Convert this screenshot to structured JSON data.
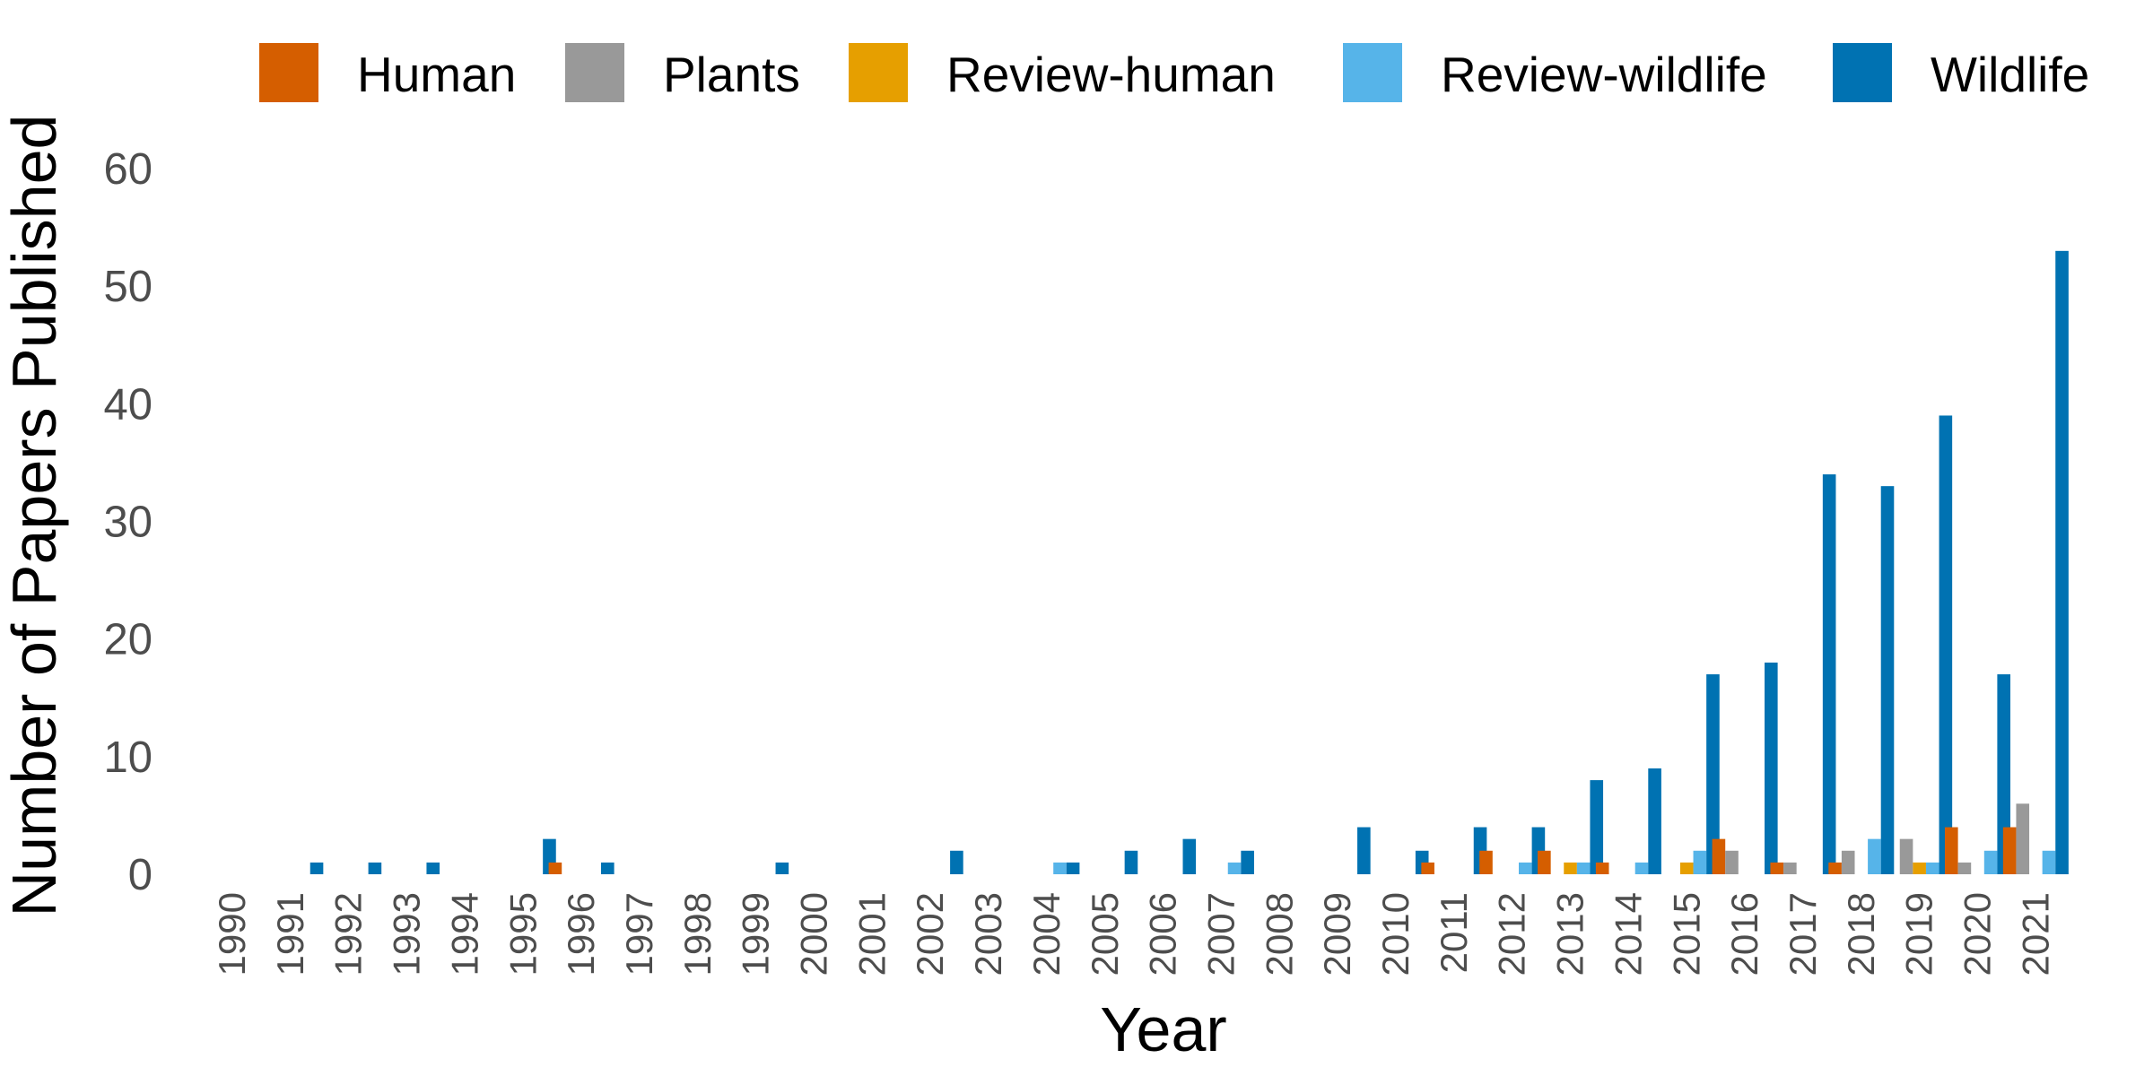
{
  "chart_data": {
    "type": "bar",
    "title": "",
    "xlabel": "Year",
    "ylabel": "Number of Papers Published",
    "ylim": [
      0,
      65
    ],
    "yticks": [
      0,
      10,
      20,
      30,
      40,
      50,
      60
    ],
    "grid": false,
    "legend_position": "top",
    "categories": [
      "1990",
      "1991",
      "1992",
      "1993",
      "1994",
      "1995",
      "1996",
      "1997",
      "1998",
      "1999",
      "2000",
      "2001",
      "2002",
      "2003",
      "2004",
      "2005",
      "2006",
      "2007",
      "2008",
      "2009",
      "2010",
      "2011",
      "2012",
      "2013",
      "2014",
      "2015",
      "2016",
      "2017",
      "2018",
      "2019",
      "2020",
      "2021"
    ],
    "series": [
      {
        "name": "Human",
        "color": "#D55E00",
        "values": [
          0,
          0,
          0,
          0,
          0,
          0,
          1,
          0,
          0,
          0,
          0,
          0,
          0,
          0,
          0,
          0,
          0,
          0,
          0,
          0,
          0,
          1,
          2,
          2,
          1,
          0,
          3,
          1,
          1,
          0,
          4,
          4
        ]
      },
      {
        "name": "Plants",
        "color": "#999999",
        "values": [
          0,
          0,
          0,
          0,
          0,
          0,
          0,
          0,
          0,
          0,
          0,
          0,
          0,
          0,
          0,
          0,
          0,
          0,
          0,
          0,
          0,
          0,
          0,
          0,
          0,
          0,
          2,
          1,
          2,
          3,
          1,
          6
        ]
      },
      {
        "name": "Review-human",
        "color": "#E69F00",
        "values": [
          0,
          0,
          0,
          0,
          0,
          0,
          0,
          0,
          0,
          0,
          0,
          0,
          0,
          0,
          0,
          0,
          0,
          0,
          0,
          0,
          0,
          0,
          0,
          1,
          0,
          1,
          0,
          0,
          0,
          1,
          0,
          0
        ]
      },
      {
        "name": "Review-wildlife",
        "color": "#56B4E9",
        "values": [
          0,
          0,
          0,
          0,
          0,
          0,
          0,
          0,
          0,
          0,
          0,
          0,
          0,
          0,
          1,
          0,
          0,
          1,
          0,
          0,
          0,
          0,
          1,
          1,
          1,
          2,
          0,
          0,
          3,
          1,
          2,
          2
        ]
      },
      {
        "name": "Wildlife",
        "color": "#0072B2",
        "values": [
          0,
          1,
          1,
          1,
          0,
          3,
          1,
          0,
          0,
          1,
          0,
          0,
          2,
          0,
          1,
          2,
          3,
          2,
          0,
          4,
          2,
          4,
          4,
          8,
          9,
          17,
          18,
          34,
          33,
          39,
          17,
          53
        ]
      }
    ]
  }
}
